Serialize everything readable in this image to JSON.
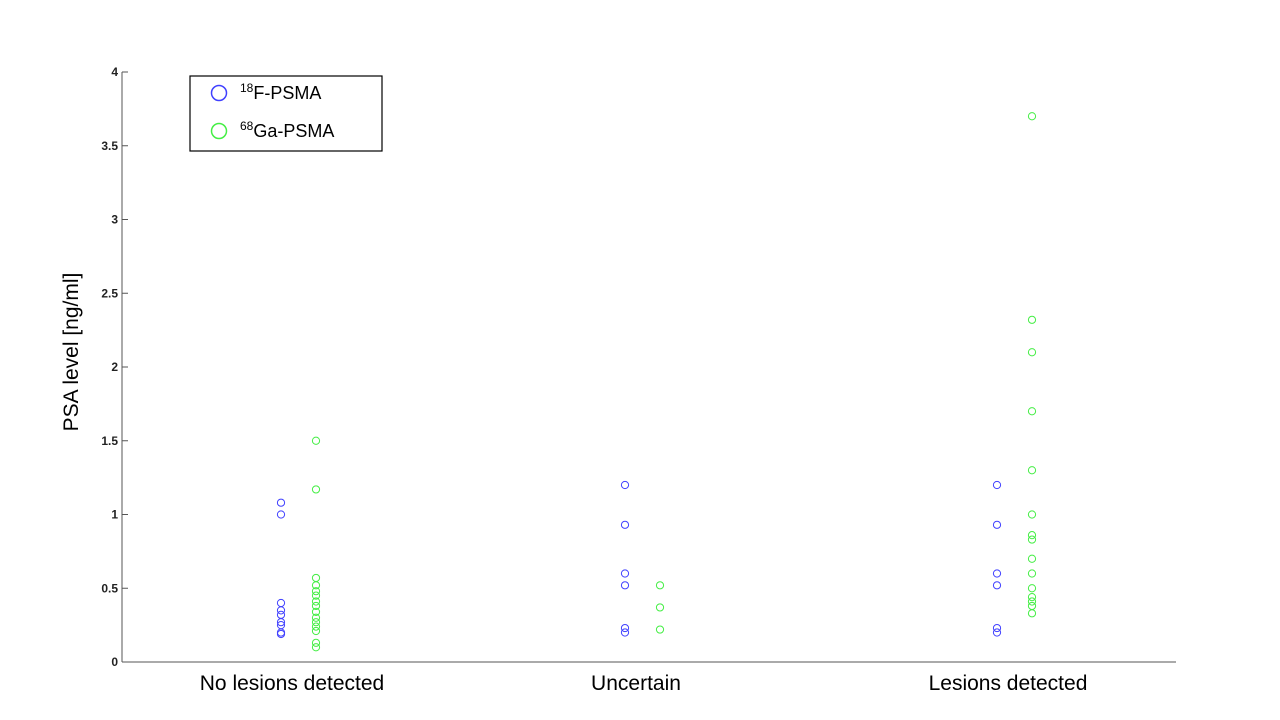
{
  "chart_data": {
    "type": "scatter",
    "title": "",
    "xlabel": "",
    "ylabel": "PSA level [ng/ml]",
    "categories": [
      "No lesions detected",
      "Uncertain",
      "Lesions detected"
    ],
    "ylim": [
      0,
      4
    ],
    "yticks": [
      "0",
      "0.5",
      "1",
      "1.5",
      "2",
      "2.5",
      "3",
      "3.5",
      "4"
    ],
    "grid": false,
    "legend_position": "top-left",
    "series": [
      {
        "name": "18F-PSMA",
        "name_sup": "18",
        "name_main": "F-PSMA",
        "color": "#4040ff",
        "points": [
          {
            "category": "No lesions detected",
            "y": 1.08
          },
          {
            "category": "No lesions detected",
            "y": 1.0
          },
          {
            "category": "No lesions detected",
            "y": 0.4
          },
          {
            "category": "No lesions detected",
            "y": 0.35
          },
          {
            "category": "No lesions detected",
            "y": 0.32
          },
          {
            "category": "No lesions detected",
            "y": 0.27
          },
          {
            "category": "No lesions detected",
            "y": 0.25
          },
          {
            "category": "No lesions detected",
            "y": 0.2
          },
          {
            "category": "No lesions detected",
            "y": 0.19
          },
          {
            "category": "Uncertain",
            "y": 1.2
          },
          {
            "category": "Uncertain",
            "y": 0.93
          },
          {
            "category": "Uncertain",
            "y": 0.6
          },
          {
            "category": "Uncertain",
            "y": 0.52
          },
          {
            "category": "Uncertain",
            "y": 0.23
          },
          {
            "category": "Uncertain",
            "y": 0.2
          },
          {
            "category": "Lesions detected",
            "y": 1.2
          },
          {
            "category": "Lesions detected",
            "y": 0.93
          },
          {
            "category": "Lesions detected",
            "y": 0.6
          },
          {
            "category": "Lesions detected",
            "y": 0.52
          },
          {
            "category": "Lesions detected",
            "y": 0.23
          },
          {
            "category": "Lesions detected",
            "y": 0.2
          }
        ]
      },
      {
        "name": "68Ga-PSMA",
        "name_sup": "68",
        "name_main": "Ga-PSMA",
        "color": "#44ee44",
        "points": [
          {
            "category": "No lesions detected",
            "y": 1.5
          },
          {
            "category": "No lesions detected",
            "y": 1.17
          },
          {
            "category": "No lesions detected",
            "y": 0.57
          },
          {
            "category": "No lesions detected",
            "y": 0.52
          },
          {
            "category": "No lesions detected",
            "y": 0.48
          },
          {
            "category": "No lesions detected",
            "y": 0.45
          },
          {
            "category": "No lesions detected",
            "y": 0.41
          },
          {
            "category": "No lesions detected",
            "y": 0.38
          },
          {
            "category": "No lesions detected",
            "y": 0.34
          },
          {
            "category": "No lesions detected",
            "y": 0.3
          },
          {
            "category": "No lesions detected",
            "y": 0.27
          },
          {
            "category": "No lesions detected",
            "y": 0.24
          },
          {
            "category": "No lesions detected",
            "y": 0.21
          },
          {
            "category": "No lesions detected",
            "y": 0.13
          },
          {
            "category": "No lesions detected",
            "y": 0.1
          },
          {
            "category": "Uncertain",
            "y": 0.52
          },
          {
            "category": "Uncertain",
            "y": 0.37
          },
          {
            "category": "Uncertain",
            "y": 0.22
          },
          {
            "category": "Lesions detected",
            "y": 3.7
          },
          {
            "category": "Lesions detected",
            "y": 2.32
          },
          {
            "category": "Lesions detected",
            "y": 2.1
          },
          {
            "category": "Lesions detected",
            "y": 1.7
          },
          {
            "category": "Lesions detected",
            "y": 1.3
          },
          {
            "category": "Lesions detected",
            "y": 1.0
          },
          {
            "category": "Lesions detected",
            "y": 0.86
          },
          {
            "category": "Lesions detected",
            "y": 0.83
          },
          {
            "category": "Lesions detected",
            "y": 0.7
          },
          {
            "category": "Lesions detected",
            "y": 0.6
          },
          {
            "category": "Lesions detected",
            "y": 0.5
          },
          {
            "category": "Lesions detected",
            "y": 0.44
          },
          {
            "category": "Lesions detected",
            "y": 0.41
          },
          {
            "category": "Lesions detected",
            "y": 0.38
          },
          {
            "category": "Lesions detected",
            "y": 0.33
          }
        ]
      }
    ]
  }
}
